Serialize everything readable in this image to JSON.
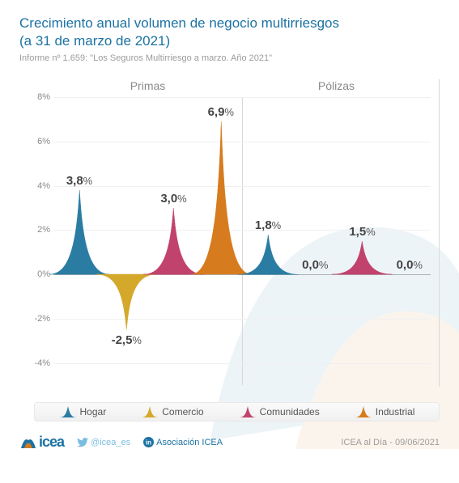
{
  "title_line1": "Crecimiento anual volumen de negocio multirriesgos",
  "title_line2": "(a 31 de marzo de 2021)",
  "subtitle": "Informe nº 1.659: \"Los Seguros Multirriesgo a marzo. Año 2021\"",
  "panels": [
    "Primas",
    "Pólizas"
  ],
  "yaxis": {
    "min": -5,
    "max": 8,
    "ticks": [
      -4,
      -2,
      0,
      2,
      4,
      6,
      8
    ],
    "labels": [
      "-4%",
      "-2%",
      "0%",
      "2%",
      "4%",
      "6%",
      "8%"
    ]
  },
  "gridline_color": "#f0f0f0",
  "axis_color": "#b0b0b0",
  "categories": [
    {
      "key": "hogar",
      "label": "Hogar",
      "color": "#2a7ca3"
    },
    {
      "key": "comercio",
      "label": "Comercio",
      "color": "#d4a82a"
    },
    {
      "key": "comunidades",
      "label": "Comunidades",
      "color": "#c1436d"
    },
    {
      "key": "industrial",
      "label": "Industrial",
      "color": "#d67b1e"
    }
  ],
  "data": {
    "primas": [
      3.8,
      -2.5,
      3.0,
      6.9
    ],
    "polizas": [
      1.8,
      0.0,
      1.5,
      0.0
    ]
  },
  "data_labels": {
    "primas": [
      "3,8%",
      "-2,5%",
      "3,0%",
      "6,9%"
    ],
    "polizas": [
      "1,8%",
      "0,0%",
      "1,5%",
      "0,0%"
    ]
  },
  "footer": {
    "logo_text": "icea",
    "twitter": "@icea_es",
    "linkedin": "Asociación ICEA",
    "right": "ICEA al Día - 09/06/2021"
  },
  "colors": {
    "title": "#1c72a3",
    "subtitle": "#9c9c9c",
    "panel_label": "#8a8a8a",
    "background": "#ffffff"
  }
}
